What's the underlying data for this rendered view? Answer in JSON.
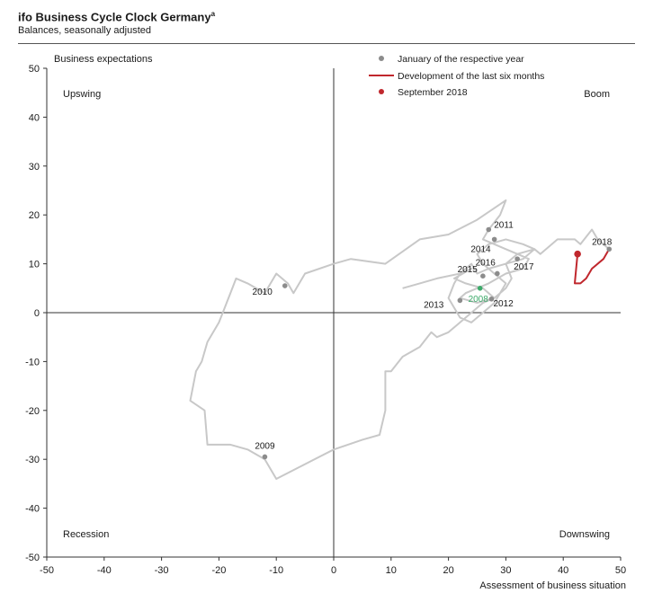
{
  "header": {
    "title": "ifo Business Cycle Clock Germany",
    "title_sup": "a",
    "subtitle": "Balances, seasonally adjusted"
  },
  "chart_data": {
    "type": "scatter",
    "xlabel": "Assessment of business situation",
    "ylabel": "Business expectations",
    "xlim": [
      -50,
      50
    ],
    "ylim": [
      -50,
      50
    ],
    "x_ticks": [
      -50,
      -40,
      -30,
      -20,
      -10,
      0,
      10,
      20,
      30,
      40,
      50
    ],
    "y_ticks": [
      -50,
      -40,
      -30,
      -20,
      -10,
      0,
      10,
      20,
      30,
      40,
      50
    ],
    "tick_labels": [
      "-50",
      "-40",
      "-30",
      "-20",
      "-10",
      "0",
      "10",
      "20",
      "30",
      "40",
      "50"
    ],
    "quadrants": {
      "top_left": "Upswing",
      "top_right": "Boom",
      "bottom_left": "Recession",
      "bottom_right": "Downswing"
    },
    "legend": {
      "position": "top-right",
      "items": [
        {
          "label": "January of the respective year",
          "type": "dot",
          "color": "#8c8c8c"
        },
        {
          "label": "Development of the last six months",
          "type": "line",
          "color": "#c0272d"
        },
        {
          "label": "September 2018",
          "type": "dot",
          "color": "#c0272d"
        }
      ]
    },
    "colors": {
      "path": "#c8c8c8",
      "january": "#8c8c8c",
      "recent": "#c0272d",
      "highlight_2008": "#3daa6a"
    },
    "series": [
      {
        "values": [
          [
            12,
            5
          ],
          [
            15,
            6
          ],
          [
            18,
            7
          ],
          [
            22,
            8
          ],
          [
            24,
            9
          ],
          [
            21,
            7
          ],
          [
            23,
            6
          ],
          [
            26,
            5
          ],
          [
            28,
            3
          ],
          [
            26,
            2
          ],
          [
            24,
            0
          ],
          [
            22,
            -2
          ],
          [
            20,
            -4
          ],
          [
            18,
            -5
          ],
          [
            17,
            -4
          ],
          [
            15,
            -7
          ],
          [
            12,
            -9
          ],
          [
            10,
            -12
          ],
          [
            9,
            -12
          ],
          [
            9,
            -20
          ],
          [
            8,
            -25
          ],
          [
            5,
            -26
          ],
          [
            0,
            -28
          ],
          [
            -5,
            -31
          ],
          [
            -10,
            -34
          ],
          [
            -12,
            -30
          ],
          [
            -15,
            -28
          ],
          [
            -18,
            -27
          ],
          [
            -22,
            -27
          ],
          [
            -22.5,
            -20
          ],
          [
            -25,
            -18
          ],
          [
            -24,
            -12
          ],
          [
            -23,
            -10
          ],
          [
            -22,
            -6
          ],
          [
            -20,
            -2
          ],
          [
            -19,
            1
          ],
          [
            -18,
            4
          ],
          [
            -17,
            7
          ],
          [
            -15,
            6
          ],
          [
            -12,
            4
          ],
          [
            -10,
            8
          ],
          [
            -8,
            6
          ],
          [
            -7,
            4
          ],
          [
            -5,
            8
          ],
          [
            0,
            10
          ],
          [
            3,
            11
          ],
          [
            9,
            10
          ],
          [
            15,
            15
          ],
          [
            20,
            16
          ],
          [
            25,
            19
          ],
          [
            30,
            23
          ],
          [
            29,
            20
          ],
          [
            27,
            17
          ],
          [
            26,
            15
          ],
          [
            28,
            14
          ],
          [
            30,
            13
          ],
          [
            32,
            12
          ],
          [
            34,
            11
          ],
          [
            33,
            9
          ],
          [
            30,
            8
          ],
          [
            27,
            6
          ],
          [
            25,
            5
          ],
          [
            23,
            4
          ],
          [
            22,
            3
          ],
          [
            25,
            2
          ],
          [
            28,
            3
          ],
          [
            30,
            5
          ],
          [
            31,
            7
          ],
          [
            30,
            10
          ],
          [
            32,
            12
          ],
          [
            35,
            13
          ],
          [
            33,
            11
          ],
          [
            30,
            10
          ],
          [
            27,
            9
          ],
          [
            25,
            8
          ],
          [
            24,
            10
          ],
          [
            22,
            8
          ],
          [
            21,
            6
          ],
          [
            20,
            3
          ],
          [
            21,
            1
          ],
          [
            22,
            -1
          ],
          [
            24,
            -2
          ],
          [
            26,
            0
          ],
          [
            28,
            2
          ],
          [
            29,
            4
          ],
          [
            30,
            6
          ],
          [
            28,
            8
          ],
          [
            26,
            10
          ],
          [
            25,
            12
          ],
          [
            27,
            14
          ],
          [
            30,
            15
          ],
          [
            33,
            14
          ],
          [
            35,
            13
          ],
          [
            36,
            12
          ],
          [
            39,
            15
          ],
          [
            42,
            15
          ],
          [
            43,
            14
          ],
          [
            45,
            17
          ],
          [
            46,
            15
          ],
          [
            48,
            13
          ]
        ]
      },
      {
        "values": [
          [
            48,
            13
          ],
          [
            47,
            11
          ],
          [
            45,
            9
          ],
          [
            44,
            7
          ],
          [
            43,
            6
          ],
          [
            42,
            6
          ],
          [
            42.5,
            12
          ]
        ]
      }
    ],
    "january_points": [
      {
        "label": "2009",
        "x": -12,
        "y": -29.5
      },
      {
        "label": "2010",
        "x": -8.5,
        "y": 5.5
      },
      {
        "label": "2011",
        "x": 27,
        "y": 17
      },
      {
        "label": "2012",
        "x": 27.5,
        "y": 2.8
      },
      {
        "label": "2013",
        "x": 22,
        "y": 2.5
      },
      {
        "label": "2014",
        "x": 28,
        "y": 15
      },
      {
        "label": "2015",
        "x": 26,
        "y": 7.5
      },
      {
        "label": "2016",
        "x": 28.5,
        "y": 8
      },
      {
        "label": "2017",
        "x": 32,
        "y": 11
      },
      {
        "label": "2018",
        "x": 48,
        "y": 13
      }
    ],
    "highlight_points": [
      {
        "label": "2008",
        "x": 25.5,
        "y": 5
      }
    ],
    "current_point": {
      "label": "September 2018",
      "x": 42.5,
      "y": 12
    }
  }
}
